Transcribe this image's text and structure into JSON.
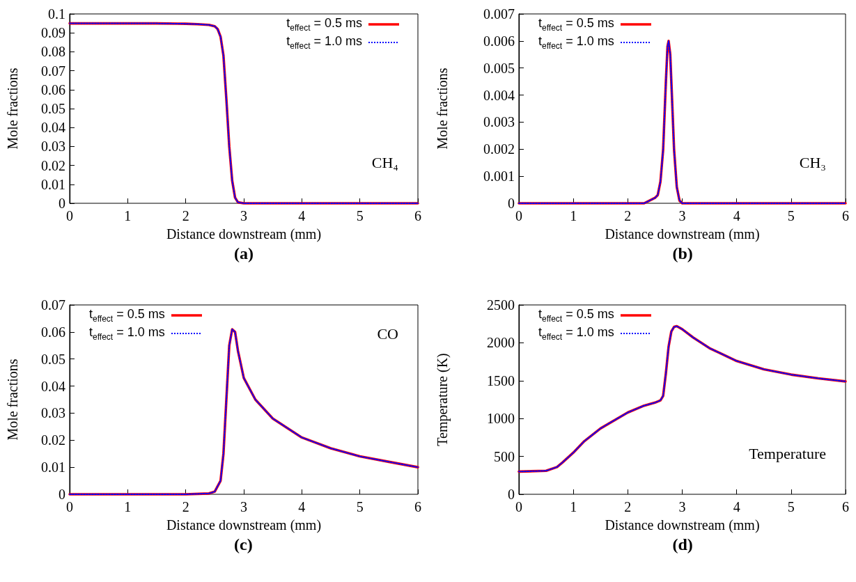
{
  "chart_data": [
    {
      "type": "line",
      "xlabel": "Distance downstream (mm)",
      "ylabel": "Mole fractions",
      "annotations": [
        "CH₄",
        "(a)"
      ],
      "legend": "top right",
      "grid": false,
      "marker": "none",
      "xlim": [
        0,
        6
      ],
      "xticks": [
        0,
        1,
        2,
        3,
        4,
        5,
        6
      ],
      "ylim": [
        0,
        0.1
      ],
      "yticks": [
        0,
        0.01,
        0.02,
        0.03,
        0.04,
        0.05,
        0.06,
        0.07,
        0.08,
        0.09,
        0.1
      ],
      "x": [
        0,
        0.5,
        1,
        1.5,
        2,
        2.2,
        2.4,
        2.5,
        2.55,
        2.6,
        2.65,
        2.7,
        2.75,
        2.8,
        2.85,
        2.9,
        3,
        4,
        5,
        6
      ],
      "series": [
        {
          "name": "t$_{effect}$ = 0.5 ms",
          "color": "#ff0000",
          "line_style": "solid",
          "values": [
            0.095,
            0.095,
            0.095,
            0.095,
            0.0948,
            0.0946,
            0.0942,
            0.0935,
            0.092,
            0.088,
            0.078,
            0.055,
            0.03,
            0.012,
            0.003,
            0.0005,
            0,
            0,
            0,
            0
          ]
        },
        {
          "name": "t$_{effect}$ = 1.0 ms",
          "color": "#0000ff",
          "line_style": "dotted",
          "values": [
            0.095,
            0.095,
            0.095,
            0.095,
            0.0948,
            0.0946,
            0.0942,
            0.0935,
            0.092,
            0.088,
            0.078,
            0.055,
            0.03,
            0.012,
            0.003,
            0.0005,
            0,
            0,
            0,
            0
          ]
        }
      ]
    },
    {
      "type": "line",
      "xlabel": "Distance downstream (mm)",
      "ylabel": "Mole fractions",
      "annotations": [
        "CH₃",
        "(b)"
      ],
      "legend": "top left",
      "grid": false,
      "marker": "none",
      "xlim": [
        0,
        6
      ],
      "xticks": [
        0,
        1,
        2,
        3,
        4,
        5,
        6
      ],
      "ylim": [
        0,
        0.007
      ],
      "yticks": [
        0,
        0.001,
        0.002,
        0.003,
        0.004,
        0.005,
        0.006,
        0.007
      ],
      "x": [
        0,
        1,
        2,
        2.3,
        2.4,
        2.5,
        2.55,
        2.6,
        2.65,
        2.7,
        2.73,
        2.75,
        2.78,
        2.8,
        2.85,
        2.9,
        2.95,
        3,
        4,
        5,
        6
      ],
      "series": [
        {
          "name": "t$_{effect}$ = 0.5 ms",
          "color": "#ff0000",
          "line_style": "solid",
          "values": [
            0,
            0,
            0,
            0,
            0.0001,
            0.0002,
            0.0003,
            0.0008,
            0.002,
            0.0045,
            0.0058,
            0.006,
            0.0055,
            0.0045,
            0.002,
            0.0006,
            0.0001,
            0,
            0,
            0,
            0
          ]
        },
        {
          "name": "t$_{effect}$ = 1.0 ms",
          "color": "#0000ff",
          "line_style": "dotted",
          "values": [
            0,
            0,
            0,
            0,
            0.0001,
            0.0002,
            0.0003,
            0.0008,
            0.002,
            0.0045,
            0.0058,
            0.006,
            0.0055,
            0.0045,
            0.002,
            0.0006,
            0.0001,
            0,
            0,
            0,
            0
          ]
        }
      ]
    },
    {
      "type": "line",
      "xlabel": "Distance downstream (mm)",
      "ylabel": "Mole fractions",
      "annotations": [
        "CO",
        "(c)"
      ],
      "legend": "top left",
      "grid": false,
      "marker": "none",
      "xlim": [
        0,
        6
      ],
      "xticks": [
        0,
        1,
        2,
        3,
        4,
        5,
        6
      ],
      "ylim": [
        0,
        0.07
      ],
      "yticks": [
        0,
        0.01,
        0.02,
        0.03,
        0.04,
        0.05,
        0.06,
        0.07
      ],
      "x": [
        0,
        1,
        2,
        2.4,
        2.5,
        2.6,
        2.65,
        2.7,
        2.75,
        2.8,
        2.85,
        2.9,
        3,
        3.2,
        3.5,
        4,
        4.5,
        5,
        5.5,
        6
      ],
      "series": [
        {
          "name": "t$_{effect}$ = 0.5 ms",
          "color": "#ff0000",
          "line_style": "solid",
          "values": [
            0,
            0,
            0,
            0.0003,
            0.001,
            0.005,
            0.015,
            0.035,
            0.055,
            0.061,
            0.06,
            0.053,
            0.043,
            0.035,
            0.028,
            0.021,
            0.017,
            0.014,
            0.012,
            0.01
          ]
        },
        {
          "name": "t$_{effect}$ = 1.0 ms",
          "color": "#0000ff",
          "line_style": "dotted",
          "values": [
            0,
            0,
            0,
            0.0003,
            0.001,
            0.005,
            0.015,
            0.035,
            0.055,
            0.061,
            0.06,
            0.053,
            0.043,
            0.035,
            0.028,
            0.021,
            0.017,
            0.014,
            0.012,
            0.01
          ]
        }
      ]
    },
    {
      "type": "line",
      "xlabel": "Distance downstream (mm)",
      "ylabel": "Temperature (K)",
      "annotations": [
        "Temperature",
        "(d)"
      ],
      "legend": "top left",
      "grid": false,
      "marker": "none",
      "xlim": [
        0,
        6
      ],
      "xticks": [
        0,
        1,
        2,
        3,
        4,
        5,
        6
      ],
      "ylim": [
        0,
        2500
      ],
      "yticks": [
        0,
        500,
        1000,
        1500,
        2000,
        2500
      ],
      "x": [
        0,
        0.5,
        0.7,
        0.8,
        1,
        1.2,
        1.5,
        2,
        2.3,
        2.5,
        2.6,
        2.65,
        2.7,
        2.75,
        2.8,
        2.85,
        2.9,
        3,
        3.2,
        3.5,
        4,
        4.5,
        5,
        5.5,
        6
      ],
      "series": [
        {
          "name": "t$_{effect}$ = 0.5 ms",
          "color": "#ff0000",
          "line_style": "solid",
          "values": [
            300,
            310,
            360,
            420,
            550,
            700,
            870,
            1080,
            1170,
            1210,
            1240,
            1300,
            1600,
            1950,
            2150,
            2210,
            2220,
            2180,
            2070,
            1930,
            1760,
            1650,
            1580,
            1530,
            1490
          ]
        },
        {
          "name": "t$_{effect}$ = 1.0 ms",
          "color": "#0000ff",
          "line_style": "dotted",
          "values": [
            300,
            310,
            360,
            420,
            550,
            700,
            870,
            1080,
            1170,
            1210,
            1240,
            1300,
            1600,
            1950,
            2150,
            2210,
            2220,
            2180,
            2070,
            1930,
            1760,
            1650,
            1580,
            1530,
            1490
          ]
        }
      ]
    }
  ]
}
